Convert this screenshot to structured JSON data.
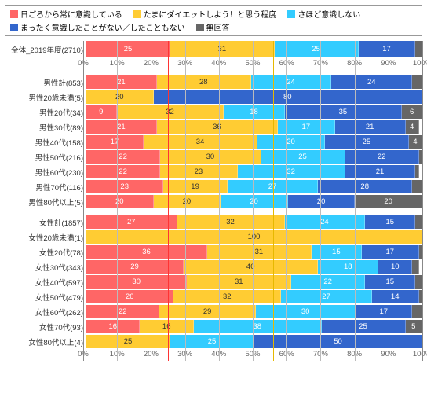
{
  "colors": {
    "c1": "#ff6666",
    "c2": "#ffcc33",
    "c3": "#33ccff",
    "c4": "#3366cc",
    "c5": "#666666",
    "grid": "#bbbbbb",
    "ref_red": "#ff3333",
    "ref_yellow": "#e6b800"
  },
  "legend": [
    {
      "label": "日ごろから常に意識している",
      "color": "c1",
      "dark": false
    },
    {
      "label": "たまにダイエットしよう！と思う程度",
      "color": "c2",
      "dark": true
    },
    {
      "label": "さほど意識しない",
      "color": "c3",
      "dark": false
    },
    {
      "label": "まったく意識したことがない／したこともない",
      "color": "c4",
      "dark": false
    },
    {
      "label": "無回答",
      "color": "c5",
      "dark": false
    }
  ],
  "axis": {
    "min": 0,
    "max": 100,
    "step": 10,
    "suffix": "%"
  },
  "ref_lines": [
    {
      "at": 25,
      "color": "ref_red"
    },
    {
      "at": 56,
      "color": "ref_yellow"
    }
  ],
  "groups": [
    {
      "rows": [
        {
          "label": "全体_2019年度(2710)",
          "tall": true,
          "values": [
            25,
            31,
            25,
            17,
            2
          ]
        }
      ],
      "axis_below": true
    },
    {
      "rows": [
        {
          "label": "男性計(853)",
          "values": [
            21,
            28,
            24,
            24,
            3
          ]
        },
        {
          "label": "男性20歳未満(5)",
          "values": [
            0,
            20,
            0,
            80,
            0
          ]
        },
        {
          "label": "男性20代(34)",
          "values": [
            9,
            32,
            18,
            35,
            6
          ]
        },
        {
          "label": "男性30代(89)",
          "values": [
            21,
            36,
            17,
            21,
            4
          ]
        },
        {
          "label": "男性40代(158)",
          "values": [
            17,
            34,
            20,
            25,
            4
          ]
        },
        {
          "label": "男性50代(216)",
          "values": [
            22,
            30,
            25,
            22,
            1
          ]
        },
        {
          "label": "男性60代(230)",
          "values": [
            22,
            23,
            32,
            21,
            1
          ]
        },
        {
          "label": "男性70代(116)",
          "values": [
            23,
            19,
            27,
            28,
            3
          ]
        },
        {
          "label": "男性80代以上(5)",
          "values": [
            20,
            20,
            20,
            20,
            20
          ]
        }
      ]
    },
    {
      "rows": [
        {
          "label": "女性計(1857)",
          "values": [
            27,
            32,
            24,
            15,
            2
          ]
        },
        {
          "label": "女性20歳未満(1)",
          "values": [
            0,
            100,
            0,
            0,
            0
          ]
        },
        {
          "label": "女性20代(78)",
          "values": [
            36,
            31,
            15,
            17,
            1
          ]
        },
        {
          "label": "女性30代(343)",
          "values": [
            29,
            40,
            18,
            10,
            2
          ]
        },
        {
          "label": "女性40代(597)",
          "values": [
            30,
            31,
            22,
            15,
            2
          ]
        },
        {
          "label": "女性50代(479)",
          "values": [
            26,
            32,
            27,
            14,
            1
          ]
        },
        {
          "label": "女性60代(262)",
          "values": [
            22,
            29,
            30,
            17,
            3
          ]
        },
        {
          "label": "女性70代(93)",
          "values": [
            16,
            16,
            38,
            25,
            5
          ]
        },
        {
          "label": "女性80代以上(4)",
          "values": [
            0,
            25,
            25,
            50,
            0
          ]
        }
      ],
      "axis_below": true
    }
  ]
}
